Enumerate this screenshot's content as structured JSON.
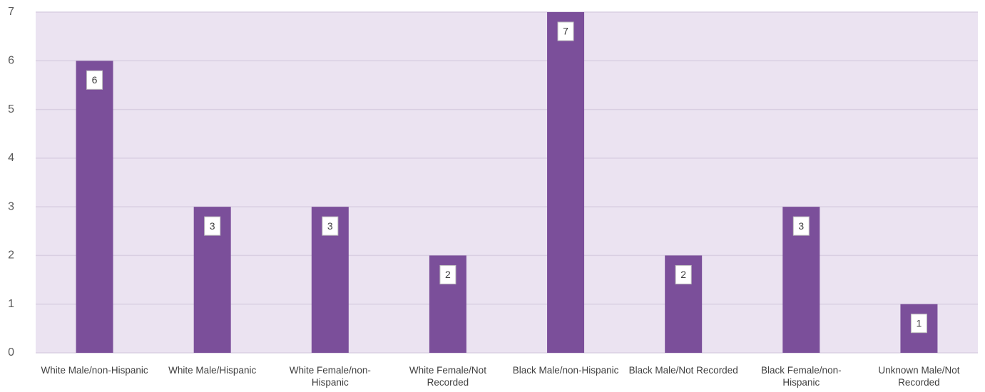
{
  "chart_data": {
    "type": "bar",
    "categories": [
      "White Male/non-Hispanic",
      "White Male/Hispanic",
      "White Female/non-Hispanic",
      "White Female/Not Recorded",
      "Black Male/non-Hispanic",
      "Black Male/Not Recorded",
      "Black Female/non-Hispanic",
      "Unknown Male/Not Recorded"
    ],
    "values": [
      6,
      3,
      3,
      2,
      7,
      2,
      3,
      1
    ],
    "color": "#7b4f9a",
    "ylim": [
      0,
      7
    ],
    "yticks": [
      0,
      1,
      2,
      3,
      4,
      5,
      6,
      7
    ],
    "grid": true
  }
}
